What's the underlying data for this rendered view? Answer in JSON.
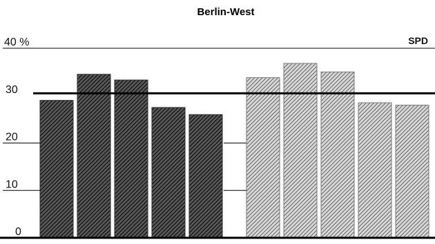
{
  "chart_data": {
    "type": "bar",
    "title": "Berlin-West",
    "series_label": "SPD",
    "unit_label": "40 %",
    "y_ticks": [
      "0",
      "10",
      "20",
      "30"
    ],
    "ylim": [
      0,
      40
    ],
    "reference_line": 30.5,
    "groups": [
      {
        "style": "dark-hatch",
        "values": [
          29,
          34.5,
          33.3,
          27.5,
          26
        ]
      },
      {
        "style": "light-hatch",
        "values": [
          33.8,
          36.8,
          35,
          28.5,
          28
        ]
      }
    ],
    "grid": "partial horizontal lines at 10, 20 and 40",
    "colors": {
      "dark": "#2a2a2a",
      "light": "#9a9a9a",
      "line": "#000000"
    }
  }
}
